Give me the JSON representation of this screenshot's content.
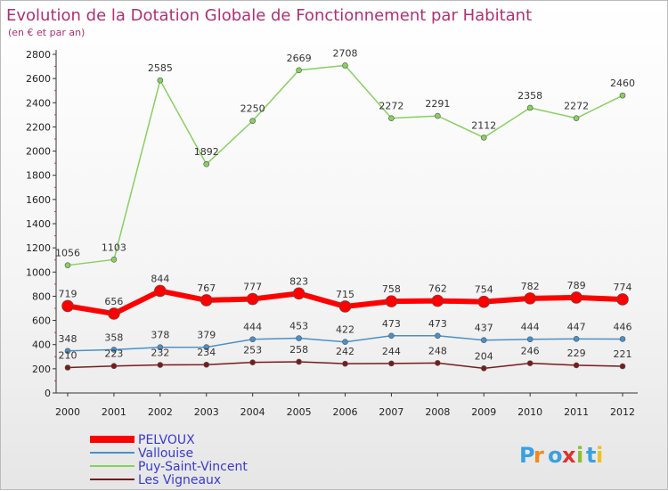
{
  "chart_data": {
    "type": "line",
    "title": "Evolution de la Dotation Globale de Fonctionnement par Habitant",
    "subtitle": "(en € et par an)",
    "x": [
      "2000",
      "2001",
      "2002",
      "2003",
      "2004",
      "2005",
      "2006",
      "2007",
      "2008",
      "2009",
      "2010",
      "2011",
      "2012"
    ],
    "ylim": [
      0,
      2800
    ],
    "yticks": [
      0,
      200,
      400,
      600,
      800,
      1000,
      1200,
      1400,
      1600,
      1800,
      2000,
      2200,
      2400,
      2600,
      2800
    ],
    "grid": false,
    "legend_position": "bottom-left",
    "series": [
      {
        "name": "PELVOUX",
        "color": "#ff0000",
        "values": [
          719,
          656,
          844,
          767,
          777,
          823,
          715,
          758,
          762,
          754,
          782,
          789,
          774
        ]
      },
      {
        "name": "Vallouise",
        "color": "#4a90c8",
        "values": [
          348,
          358,
          378,
          379,
          444,
          453,
          422,
          473,
          473,
          437,
          444,
          447,
          446
        ]
      },
      {
        "name": "Puy-Saint-Vincent",
        "color": "#88d060",
        "values": [
          1056,
          1103,
          2585,
          1892,
          2250,
          2669,
          2708,
          2272,
          2291,
          2112,
          2358,
          2272,
          2460
        ]
      },
      {
        "name": "Les Vigneaux",
        "color": "#7a1a1a",
        "values": [
          210,
          223,
          232,
          234,
          253,
          258,
          242,
          244,
          248,
          204,
          246,
          229,
          221
        ]
      }
    ]
  },
  "logo": {
    "text": "Proxiti"
  }
}
